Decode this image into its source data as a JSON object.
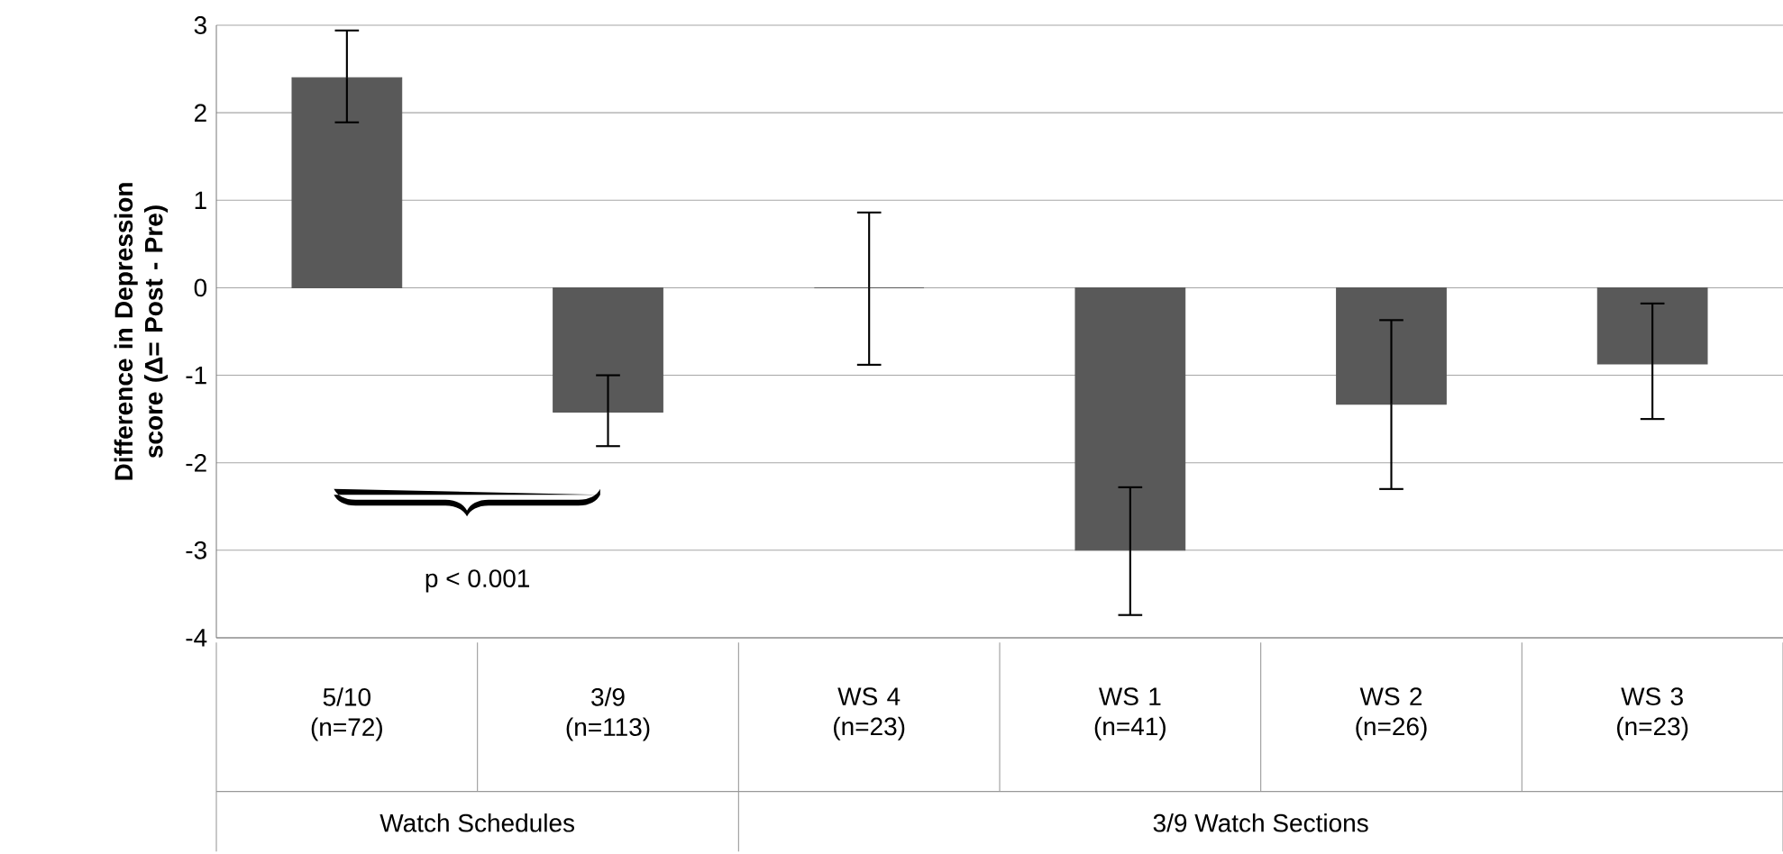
{
  "chart_data": {
    "type": "bar",
    "ylabel": "Difference in Depression score (Δ= Post - Pre)",
    "categories": [
      "5/10 (n=72)",
      "3/9 (n=113)",
      "WS 4 (n=23)",
      "WS 1 (n=41)",
      "WS 2 (n=26)",
      "WS 3 (n=23)"
    ],
    "values": [
      2.4,
      -1.42,
      0,
      -3.0,
      -1.33,
      -0.87
    ],
    "errors": [
      [
        1.89,
        2.94
      ],
      [
        -1.81,
        -1.0
      ],
      [
        -0.88,
        0.86
      ],
      [
        -3.74,
        -2.28
      ],
      [
        -2.3,
        -0.37
      ],
      [
        -1.5,
        -0.18
      ]
    ],
    "color": "#595959",
    "ylim": [
      -4,
      3
    ],
    "yticks": [
      -4,
      -3,
      -2,
      -1,
      0,
      1,
      2,
      3
    ],
    "grid": "y",
    "annotations": [
      "p < 0.001",
      "Watch Schedules",
      "3/9 Watch Sections"
    ]
  }
}
